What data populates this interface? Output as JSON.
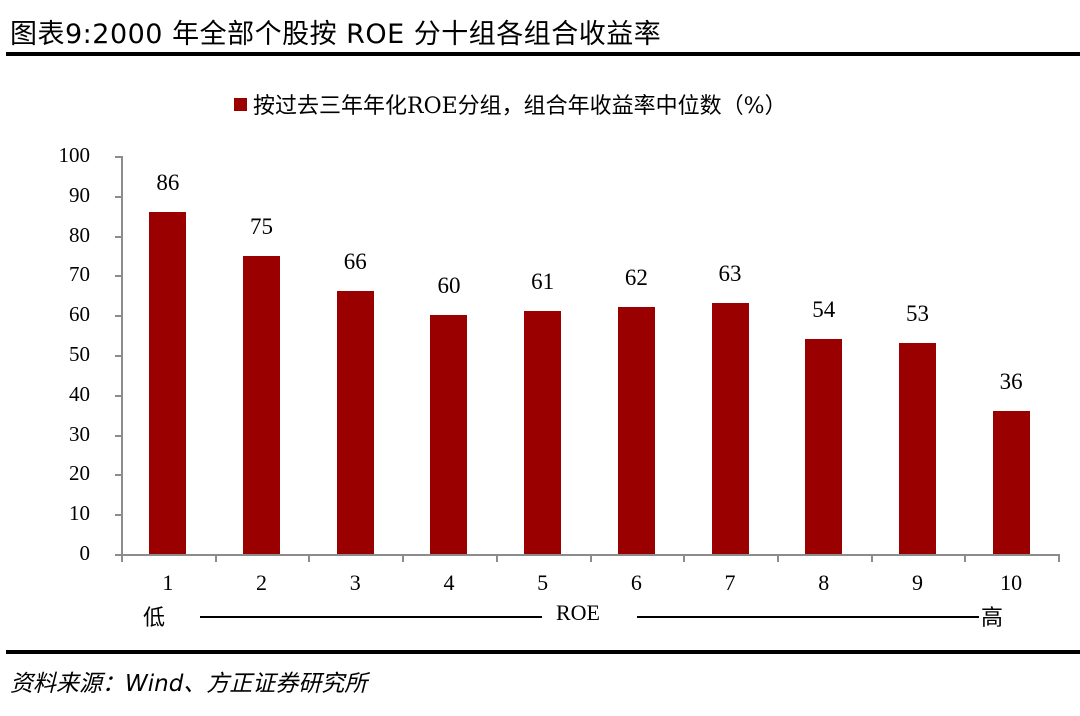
{
  "header": {
    "title": "图表9:2000 年全部个股按 ROE 分十组各组合收益率"
  },
  "legend": {
    "label": "按过去三年年化ROE分组，组合年收益率中位数（%）",
    "color": "#9b0000"
  },
  "axis": {
    "x_low_label": "低",
    "x_mid_label": "ROE",
    "x_high_label": "高"
  },
  "footer": {
    "source": "资料来源：Wind、方正证券研究所"
  },
  "chart_data": {
    "type": "bar",
    "title": "图表9:2000 年全部个股按 ROE 分十组各组合收益率",
    "categories": [
      "1",
      "2",
      "3",
      "4",
      "5",
      "6",
      "7",
      "8",
      "9",
      "10"
    ],
    "series": [
      {
        "name": "按过去三年年化ROE分组，组合年收益率中位数（%）",
        "values": [
          86,
          75,
          66,
          60,
          61,
          62,
          63,
          54,
          53,
          36
        ],
        "color": "#9b0000"
      }
    ],
    "data_labels": [
      "86",
      "75",
      "66",
      "60",
      "61",
      "62",
      "63",
      "54",
      "53",
      "36"
    ],
    "xlabel": "低 —— ROE —— 高",
    "ylabel": "",
    "ylim": [
      0,
      100
    ],
    "yticks": [
      0,
      10,
      20,
      30,
      40,
      50,
      60,
      70,
      80,
      90,
      100
    ],
    "grid": false,
    "legend_position": "top"
  }
}
